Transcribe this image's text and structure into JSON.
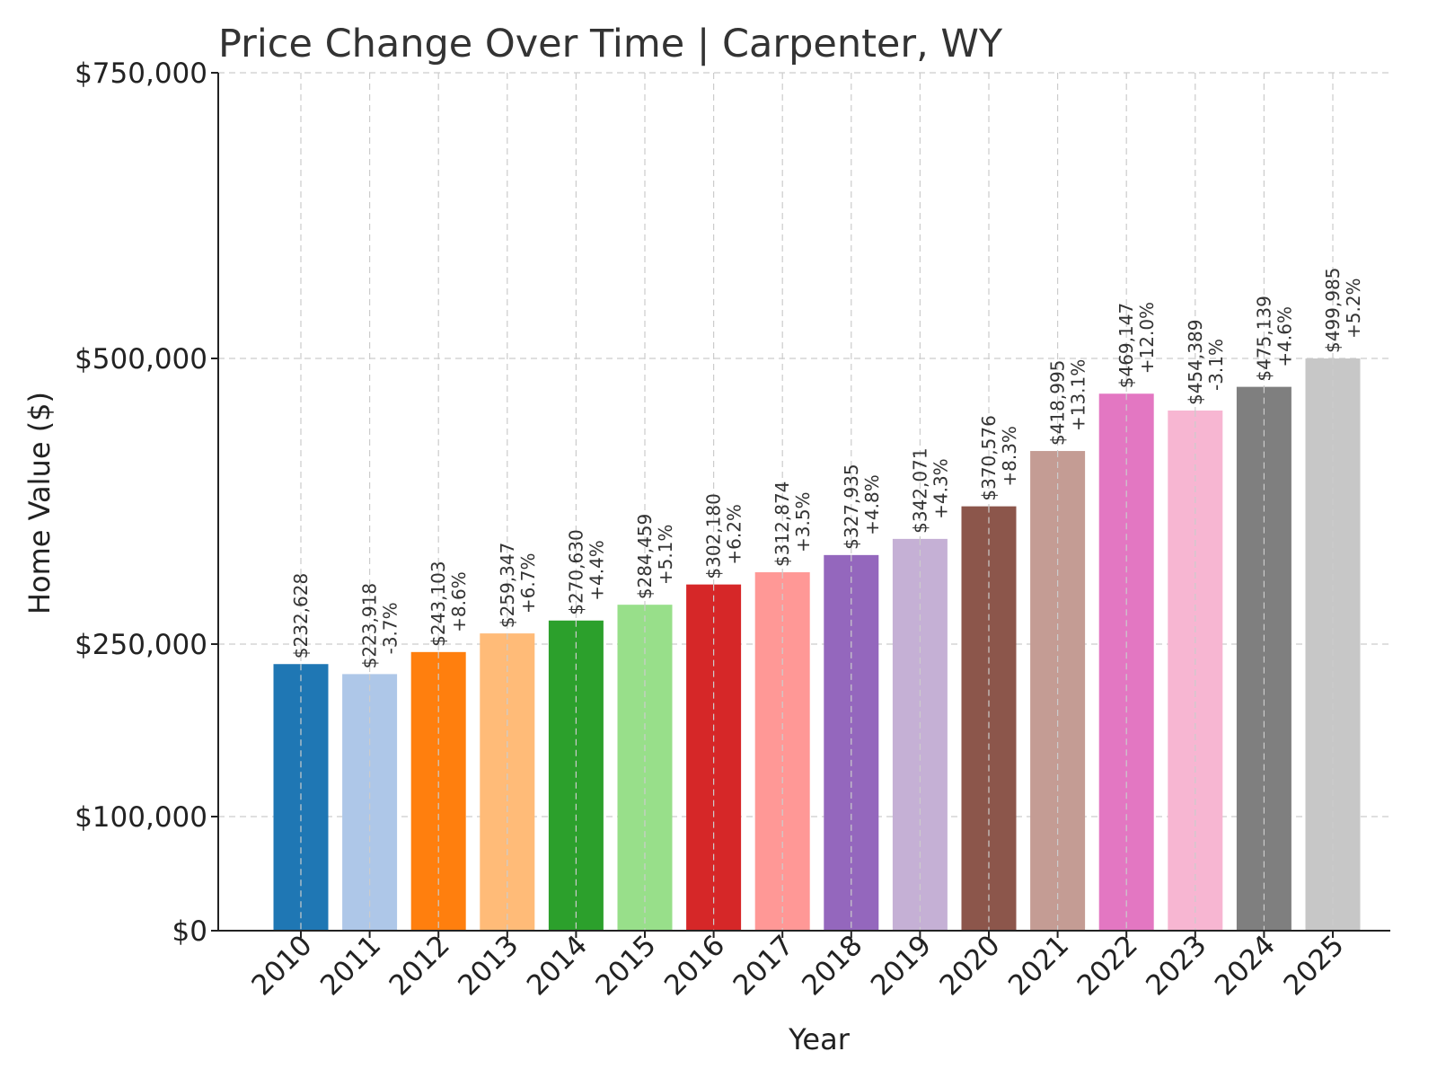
{
  "chart_data": {
    "type": "bar",
    "title": "Price Change Over Time | Carpenter, WY",
    "xlabel": "Year",
    "ylabel": "Home Value ($)",
    "ylim": [
      0,
      750000
    ],
    "y_scale": "power-like (ticks at $0, $100,000, $250,000, $500,000, $750,000)",
    "yticks": [
      {
        "value": 0,
        "label": "$0"
      },
      {
        "value": 100000,
        "label": "$100,000"
      },
      {
        "value": 250000,
        "label": "$250,000"
      },
      {
        "value": 500000,
        "label": "$500,000"
      },
      {
        "value": 750000,
        "label": "$750,000"
      }
    ],
    "grid": true,
    "categories": [
      "2010",
      "2011",
      "2012",
      "2013",
      "2014",
      "2015",
      "2016",
      "2017",
      "2018",
      "2019",
      "2020",
      "2021",
      "2022",
      "2023",
      "2024",
      "2025"
    ],
    "values": [
      232628,
      223918,
      243103,
      259347,
      270630,
      284459,
      302180,
      312874,
      327935,
      342071,
      370576,
      418995,
      469147,
      454389,
      475139,
      499985
    ],
    "value_labels": [
      "$232,628",
      "$223,918",
      "$243,103",
      "$259,347",
      "$270,630",
      "$284,459",
      "$302,180",
      "$312,874",
      "$327,935",
      "$342,071",
      "$370,576",
      "$418,995",
      "$469,147",
      "$454,389",
      "$475,139",
      "$499,985"
    ],
    "change_labels": [
      "",
      "-3.7%",
      "+8.6%",
      "+6.7%",
      "+4.4%",
      "+5.1%",
      "+6.2%",
      "+3.5%",
      "+4.8%",
      "+4.3%",
      "+8.3%",
      "+13.1%",
      "+12.0%",
      "-3.1%",
      "+4.6%",
      "+5.2%"
    ],
    "colors": [
      "#1f77b4",
      "#aec7e8",
      "#ff7f0e",
      "#ffbb78",
      "#2ca02c",
      "#98df8a",
      "#d62728",
      "#ff9896",
      "#9467bd",
      "#c5b0d5",
      "#8c564b",
      "#c49c94",
      "#e377c2",
      "#f7b6d2",
      "#7f7f7f",
      "#c7c7c7"
    ]
  }
}
